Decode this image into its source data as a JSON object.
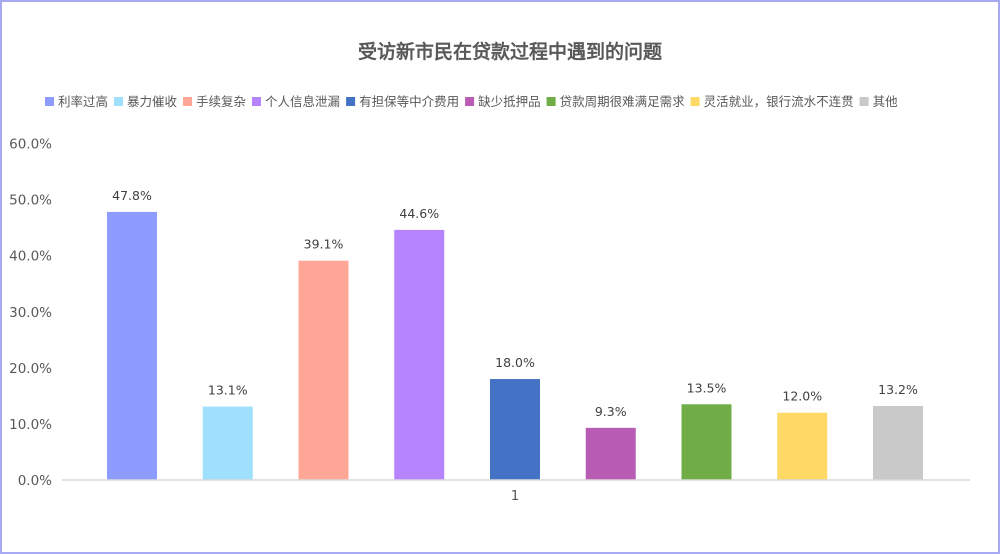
{
  "chart_data": {
    "type": "bar",
    "title": "受访新市民在贷款过程中遇到的问题",
    "categories": [
      "1"
    ],
    "series": [
      {
        "name": "利率过高",
        "values": [
          47.8
        ],
        "label": "47.8%",
        "color": "#8f9cff"
      },
      {
        "name": "暴力催收",
        "values": [
          13.1
        ],
        "label": "13.1%",
        "color": "#9fe0ff"
      },
      {
        "name": "手续复杂",
        "values": [
          39.1
        ],
        "label": "39.1%",
        "color": "#ffa696"
      },
      {
        "name": "个人信息泄漏",
        "values": [
          44.6
        ],
        "label": "44.6%",
        "color": "#b784ff"
      },
      {
        "name": "有担保等中介费用",
        "values": [
          18.0
        ],
        "label": "18.0%",
        "color": "#4472c4"
      },
      {
        "name": "缺少抵押品",
        "values": [
          9.3
        ],
        "label": "9.3%",
        "color": "#b95cb3"
      },
      {
        "name": "贷款周期很难满足需求",
        "values": [
          13.5
        ],
        "label": "13.5%",
        "color": "#70ad47"
      },
      {
        "name": "灵活就业，银行流水不连贯",
        "values": [
          12.0
        ],
        "label": "12.0%",
        "color": "#ffd966"
      },
      {
        "name": "其他",
        "values": [
          13.2
        ],
        "label": "13.2%",
        "color": "#c9c9c9"
      }
    ],
    "ylim": [
      0,
      60
    ],
    "yticks": [
      {
        "value": 0,
        "label": "0.0%"
      },
      {
        "value": 10,
        "label": "10.0%"
      },
      {
        "value": 20,
        "label": "20.0%"
      },
      {
        "value": 30,
        "label": "30.0%"
      },
      {
        "value": 40,
        "label": "40.0%"
      },
      {
        "value": 50,
        "label": "50.0%"
      },
      {
        "value": 60,
        "label": "60.0%"
      }
    ],
    "xlabel": "",
    "ylabel": "",
    "grid": false,
    "legend": "top"
  }
}
